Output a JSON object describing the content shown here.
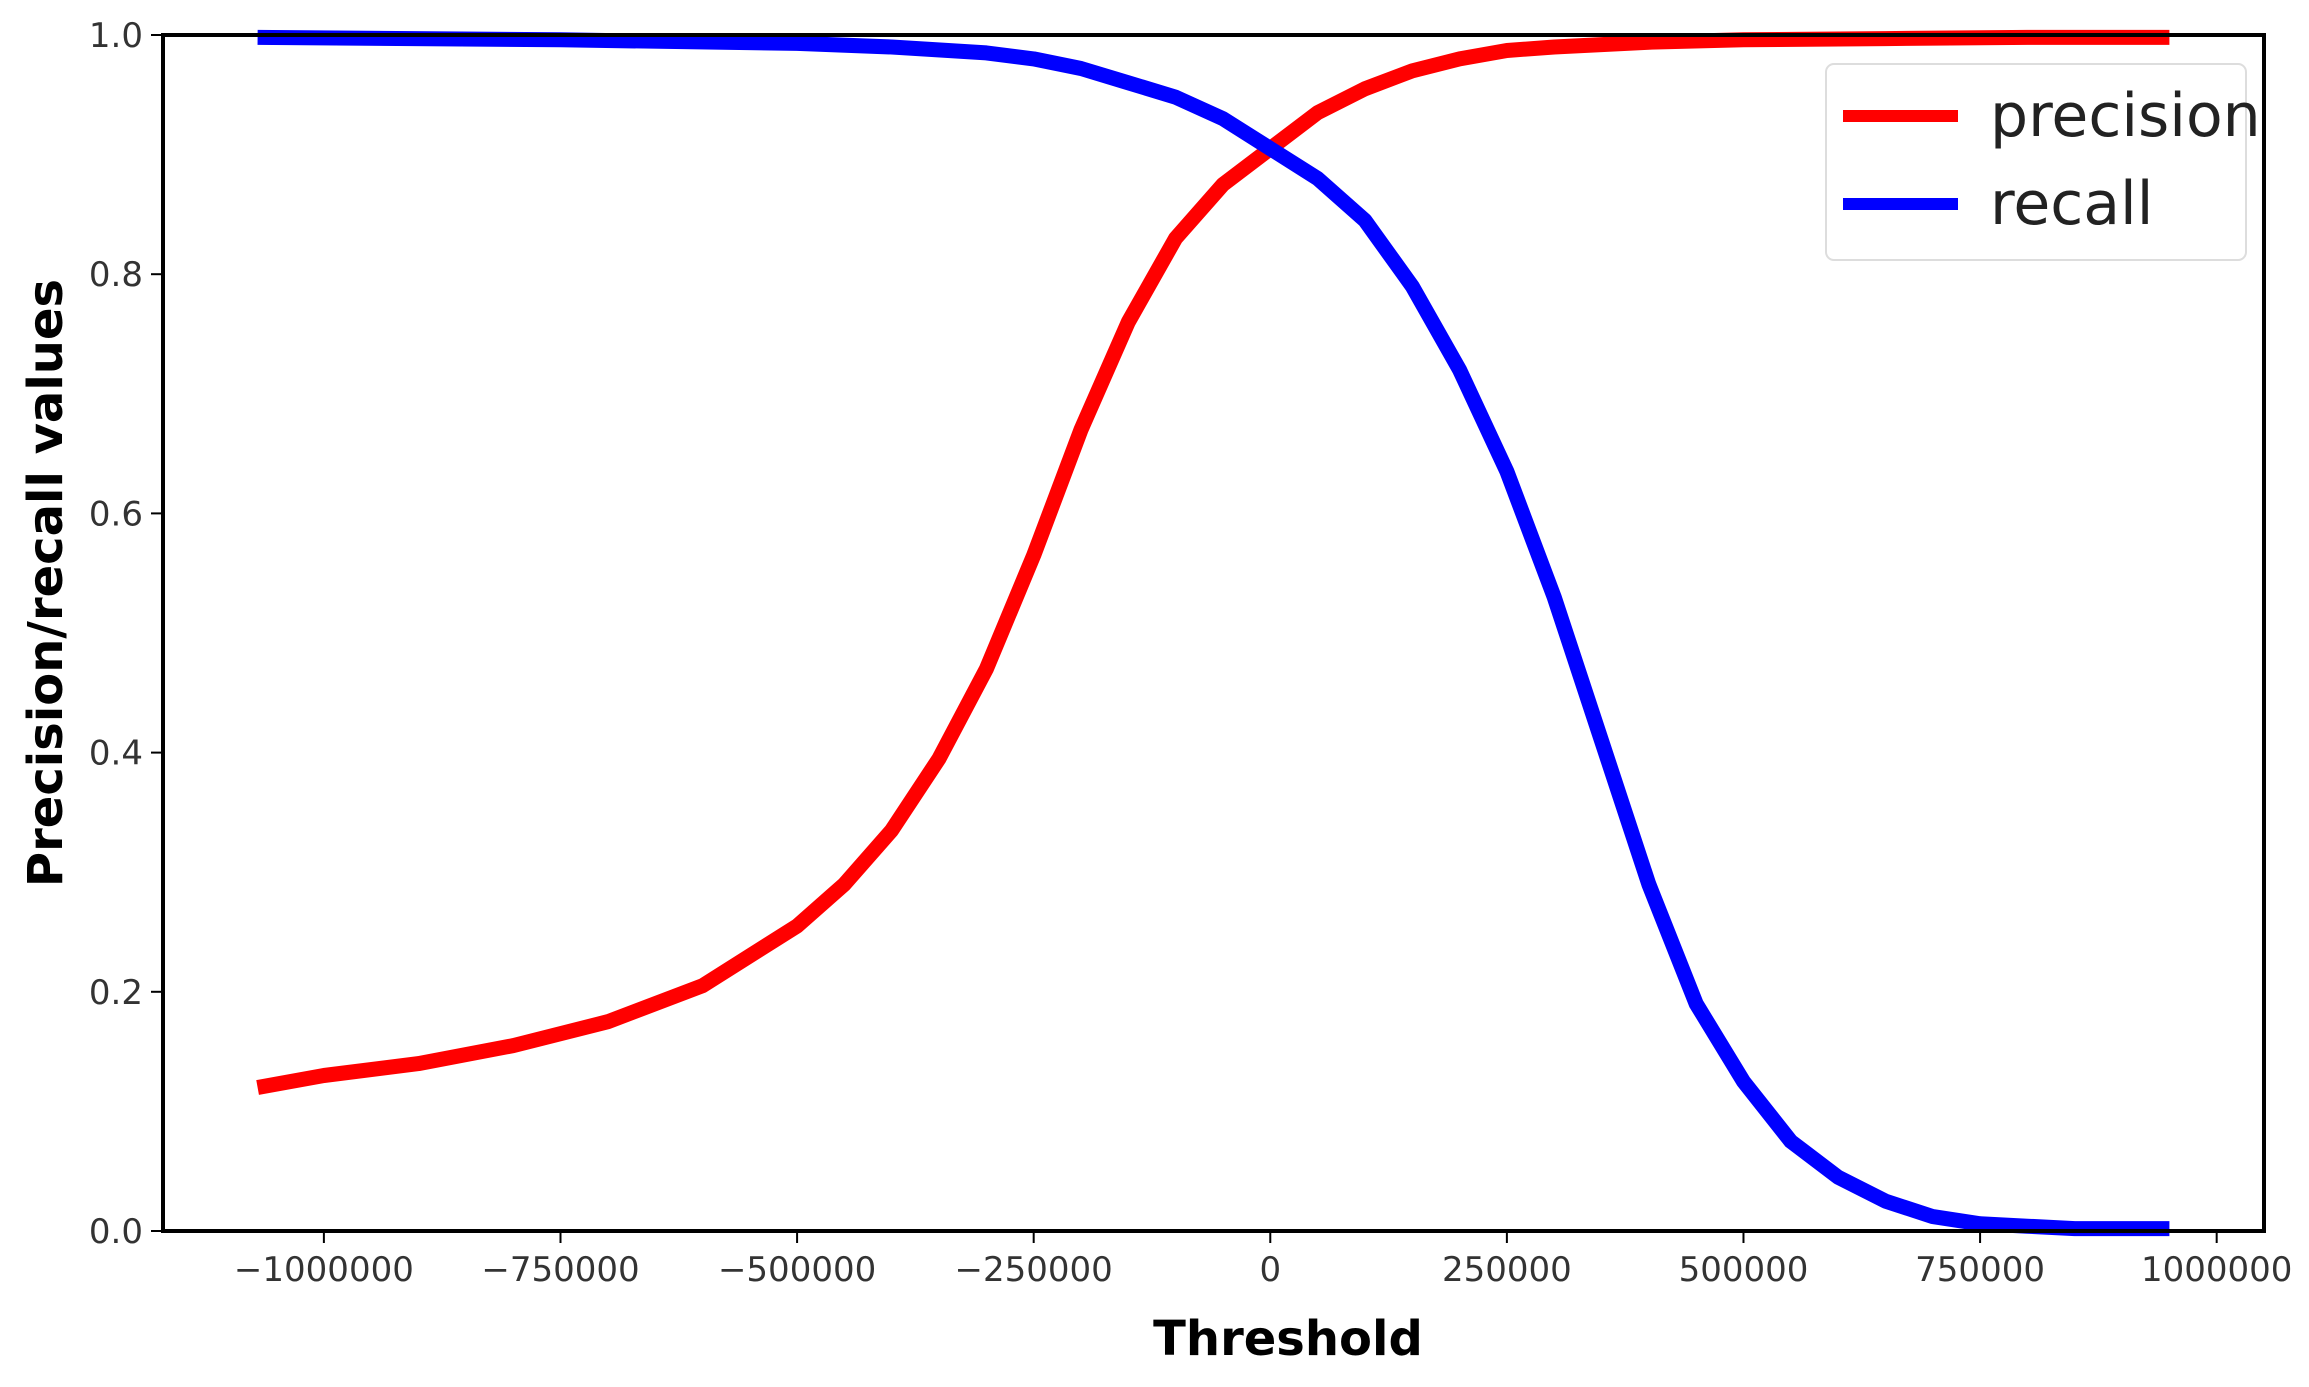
{
  "chart_data": {
    "type": "line",
    "title": "",
    "xlabel": "Threshold",
    "ylabel": "Precision/recall values",
    "xlim": [
      -1170000,
      1050000
    ],
    "ylim": [
      0,
      1.0
    ],
    "xticks": [
      -1000000,
      -750000,
      -500000,
      -250000,
      0,
      250000,
      500000,
      750000,
      1000000
    ],
    "xtick_labels": [
      "−1000000",
      "−750000",
      "−500000",
      "−250000",
      "0",
      "250000",
      "500000",
      "750000",
      "1000000"
    ],
    "yticks": [
      0.0,
      0.2,
      0.4,
      0.6,
      0.8,
      1.0
    ],
    "ytick_labels": [
      "0.0",
      "0.2",
      "0.4",
      "0.6",
      "0.8",
      "1.0"
    ],
    "grid": false,
    "legend_position": "top-right",
    "series": [
      {
        "name": "precision",
        "color": "#ff0000",
        "x": [
          -1070000,
          -1000000,
          -900000,
          -800000,
          -700000,
          -600000,
          -500000,
          -450000,
          -400000,
          -350000,
          -300000,
          -250000,
          -200000,
          -150000,
          -100000,
          -50000,
          0,
          50000,
          100000,
          150000,
          200000,
          250000,
          300000,
          400000,
          500000,
          650000,
          800000,
          950000
        ],
        "y": [
          0.12,
          0.13,
          0.14,
          0.155,
          0.175,
          0.205,
          0.255,
          0.29,
          0.335,
          0.395,
          0.47,
          0.565,
          0.67,
          0.76,
          0.83,
          0.875,
          0.905,
          0.935,
          0.955,
          0.97,
          0.98,
          0.987,
          0.99,
          0.994,
          0.996,
          0.997,
          0.998,
          0.998
        ]
      },
      {
        "name": "recall",
        "color": "#0000ff",
        "x": [
          -1070000,
          -750000,
          -500000,
          -400000,
          -300000,
          -250000,
          -200000,
          -150000,
          -100000,
          -50000,
          0,
          50000,
          100000,
          150000,
          200000,
          250000,
          300000,
          350000,
          400000,
          450000,
          500000,
          550000,
          600000,
          650000,
          700000,
          750000,
          800000,
          850000,
          950000
        ],
        "y": [
          0.998,
          0.996,
          0.993,
          0.99,
          0.985,
          0.98,
          0.972,
          0.96,
          0.948,
          0.93,
          0.905,
          0.88,
          0.845,
          0.79,
          0.72,
          0.635,
          0.53,
          0.41,
          0.29,
          0.19,
          0.125,
          0.075,
          0.045,
          0.025,
          0.012,
          0.006,
          0.004,
          0.002,
          0.002
        ]
      }
    ]
  }
}
